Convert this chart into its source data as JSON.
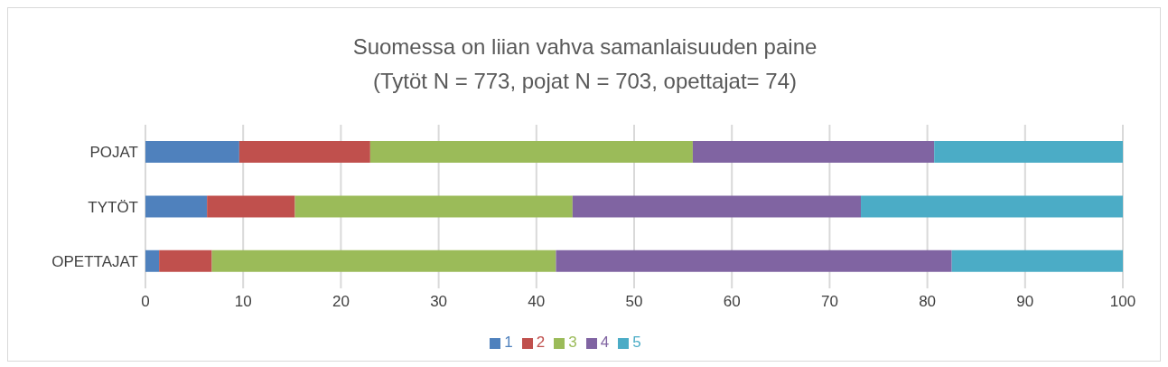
{
  "chart_data": {
    "type": "bar",
    "title": "Suomessa on liian vahva samanlaisuuden paine",
    "subtitle": "(Tytöt N = 773, pojat N = 703, opettajat= 74)",
    "categories": [
      "POJAT",
      "TYTÖT",
      "OPETTAJAT"
    ],
    "orientation": "horizontal",
    "stacked": true,
    "series": [
      {
        "name": "1",
        "color": "#4f81bd",
        "values": [
          9.6,
          6.3,
          1.4
        ]
      },
      {
        "name": "2",
        "color": "#c0504d",
        "values": [
          13.4,
          9.0,
          5.4
        ]
      },
      {
        "name": "3",
        "color": "#9bbb59",
        "values": [
          33.0,
          28.4,
          35.2
        ]
      },
      {
        "name": "4",
        "color": "#8064a2",
        "values": [
          24.7,
          29.5,
          40.5
        ]
      },
      {
        "name": "5",
        "color": "#4bacc6",
        "values": [
          19.3,
          26.8,
          17.5
        ]
      }
    ],
    "xlim": [
      0,
      100
    ],
    "xticks": [
      0,
      10,
      20,
      30,
      40,
      50,
      60,
      70,
      80,
      90,
      100
    ],
    "grid": "x",
    "legend": "bottom"
  }
}
